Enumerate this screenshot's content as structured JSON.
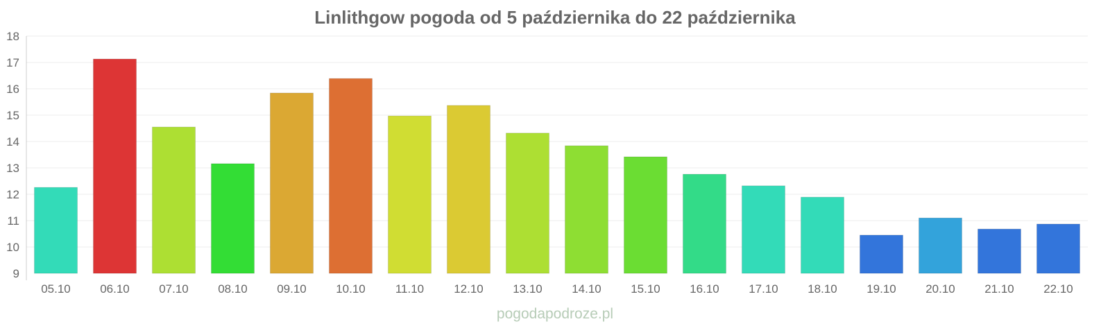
{
  "chart_data": {
    "type": "bar",
    "title": "Linlithgow pogoda od 5 października do 22 października",
    "xlabel": "",
    "ylabel": "",
    "ylim": [
      9,
      18
    ],
    "yticks": [
      "9",
      "10",
      "11",
      "12",
      "13",
      "14",
      "15",
      "16",
      "17",
      "18"
    ],
    "grid": true,
    "categories": [
      "05.10",
      "06.10",
      "07.10",
      "08.10",
      "09.10",
      "10.10",
      "11.10",
      "12.10",
      "13.10",
      "14.10",
      "15.10",
      "16.10",
      "17.10",
      "18.10",
      "19.10",
      "20.10",
      "21.10",
      "22.10"
    ],
    "values": [
      12.26,
      17.13,
      14.55,
      13.16,
      15.84,
      16.39,
      14.97,
      15.37,
      14.32,
      13.84,
      13.42,
      12.76,
      12.32,
      11.89,
      10.45,
      11.1,
      10.68,
      10.87
    ],
    "colors": [
      "#33dbb8",
      "#dd3535",
      "#addf33",
      "#33dd35",
      "#dba833",
      "#dd6f33",
      "#d0dd33",
      "#dbca33",
      "#addf33",
      "#8ede33",
      "#6bdd33",
      "#33db88",
      "#33dbb8",
      "#33dbb8",
      "#3375db",
      "#33a3db",
      "#3375db",
      "#3375db"
    ]
  },
  "watermark": "pogodapodroze.pl"
}
